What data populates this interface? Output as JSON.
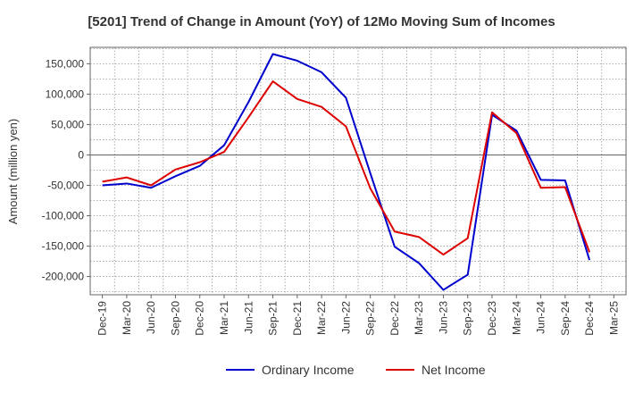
{
  "chart_data": {
    "type": "line",
    "title": "[5201]  Trend of Change in Amount (YoY) of 12Mo Moving Sum of Incomes",
    "ylabel": "Amount (million yen)",
    "xlabel": "",
    "ylim": [
      -230000,
      177000
    ],
    "yticks": [
      150000,
      100000,
      50000,
      0,
      -50000,
      -100000,
      -150000,
      -200000
    ],
    "ytick_labels": [
      "150,000",
      "100,000",
      "50,000",
      "0",
      "-50,000",
      "-100,000",
      "-150,000",
      "-200,000"
    ],
    "categories": [
      "Dec-19",
      "Mar-20",
      "Jun-20",
      "Sep-20",
      "Dec-20",
      "Mar-21",
      "Jun-21",
      "Sep-21",
      "Dec-21",
      "Mar-22",
      "Jun-22",
      "Sep-22",
      "Dec-22",
      "Mar-23",
      "Jun-23",
      "Sep-23",
      "Dec-23",
      "Mar-24",
      "Jun-24",
      "Sep-24",
      "Dec-24",
      "Mar-25"
    ],
    "grid": true,
    "legend_position": "bottom",
    "series": [
      {
        "name": "Ordinary Income",
        "color": "#0000cc",
        "values": [
          -50000,
          -47000,
          -54000,
          -35000,
          -18000,
          16000,
          87000,
          166000,
          155000,
          136000,
          94000,
          -30000,
          -151000,
          -178000,
          -222000,
          -197000,
          66000,
          40000,
          -41000,
          -42000,
          -173000,
          null
        ]
      },
      {
        "name": "Net Income",
        "color": "#dd0000",
        "values": [
          -44000,
          -37000,
          -50000,
          -24000,
          -12000,
          5000,
          62000,
          121000,
          92000,
          79000,
          47000,
          -55000,
          -126000,
          -135000,
          -164000,
          -137000,
          70000,
          36000,
          -54000,
          -53000,
          -160000,
          null
        ]
      }
    ]
  }
}
